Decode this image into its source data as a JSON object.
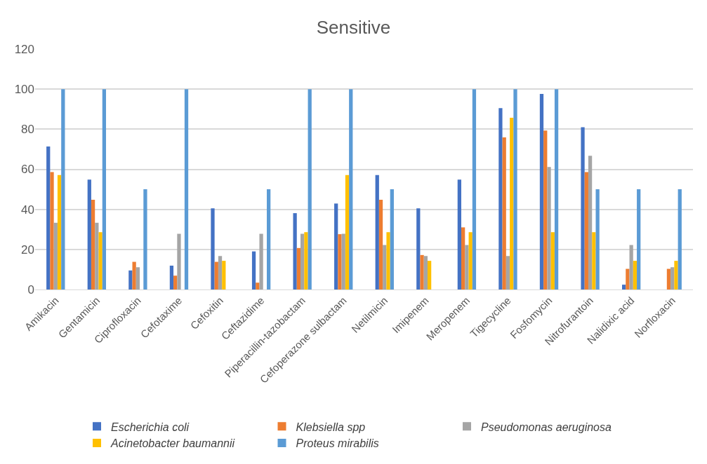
{
  "chart_data": {
    "type": "bar",
    "title": "Sensitive",
    "categories": [
      "Amikacin",
      "Gentamicin",
      "Ciprofloxacin",
      "Cefotaxime",
      "Cefoxitin",
      "Ceftazidime",
      "Piperacillin-tazobactam",
      "Cefoperazone sulbactam",
      "Netilmicin",
      "Imipenem",
      "Meropenem",
      "Tigecycline",
      "Fosfomycin",
      "Nitrofurantoin",
      "Nalidixic acid",
      "Norfloxacin"
    ],
    "series": [
      {
        "name": "Escherichia coli",
        "color": "#4472c4",
        "values": [
          71.4,
          54.8,
          9.5,
          11.9,
          40.5,
          19.0,
          38.1,
          42.9,
          57.1,
          40.5,
          54.8,
          90.5,
          97.6,
          81.0,
          2.4,
          0
        ]
      },
      {
        "name": "Klebsiella spp",
        "color": "#ed7d31",
        "values": [
          58.6,
          44.8,
          13.8,
          6.9,
          13.8,
          3.4,
          20.7,
          27.6,
          44.8,
          17.2,
          31.0,
          75.9,
          79.3,
          58.6,
          10.3,
          10.3
        ]
      },
      {
        "name": "Pseudomonas aeruginosa",
        "color": "#a5a5a5",
        "values": [
          33.3,
          33.3,
          11.1,
          27.8,
          16.7,
          27.8,
          27.8,
          27.8,
          22.2,
          16.7,
          22.2,
          16.7,
          61.1,
          66.7,
          22.2,
          11.1
        ]
      },
      {
        "name": "Acinetobacter baumannii",
        "color": "#ffc000",
        "values": [
          57.1,
          28.6,
          0,
          0,
          14.3,
          0,
          28.6,
          57.1,
          28.6,
          14.3,
          28.6,
          85.7,
          28.6,
          28.6,
          14.3,
          14.3
        ]
      },
      {
        "name": "Proteus mirabilis",
        "color": "#5b9bd5",
        "values": [
          100,
          100,
          50,
          100,
          0,
          50,
          100,
          100,
          50,
          0,
          100,
          100,
          100,
          50,
          50,
          50
        ]
      }
    ],
    "ylim": [
      0,
      120
    ],
    "yticks": [
      0,
      20,
      40,
      60,
      80,
      100,
      120
    ],
    "grid": "y",
    "legend": "bottom"
  }
}
